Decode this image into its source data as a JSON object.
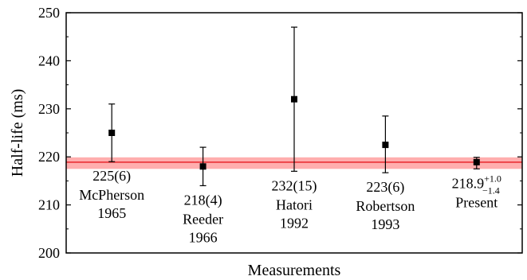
{
  "chart_data": {
    "type": "scatter",
    "xlabel": "Measurements",
    "ylabel": "Half-life (ms)",
    "ylim": [
      200,
      250
    ],
    "y_ticks": [
      "200",
      "210",
      "220",
      "230",
      "240",
      "250"
    ],
    "x_ticks_visible": false,
    "grid": false,
    "band": {
      "center": 218.9,
      "plus": 1.0,
      "minus": 1.4,
      "color": "#ff6b6b",
      "line_color": "#e8262b"
    },
    "points": [
      {
        "label_value": "225(6)",
        "label_name": "McPherson",
        "label_year": "1965",
        "y": 225,
        "y_low": 219,
        "y_high": 231
      },
      {
        "label_value": "218(4)",
        "label_name": "Reeder",
        "label_year": "1966",
        "y": 218,
        "y_low": 214,
        "y_high": 222
      },
      {
        "label_value": "232(15)",
        "label_name": "Hatori",
        "label_year": "1992",
        "y": 232,
        "y_low": 217,
        "y_high": 247
      },
      {
        "label_value": "223(6)",
        "label_name": "Robertson",
        "label_year": "1993",
        "y": 222.5,
        "y_low": 216.7,
        "y_high": 228.5
      },
      {
        "label_value": "218.9",
        "label_sup": "+1.0",
        "label_sub": "−1.4",
        "label_name": "Present",
        "label_year": "",
        "y": 218.9,
        "y_low": 217.5,
        "y_high": 219.9
      }
    ]
  }
}
